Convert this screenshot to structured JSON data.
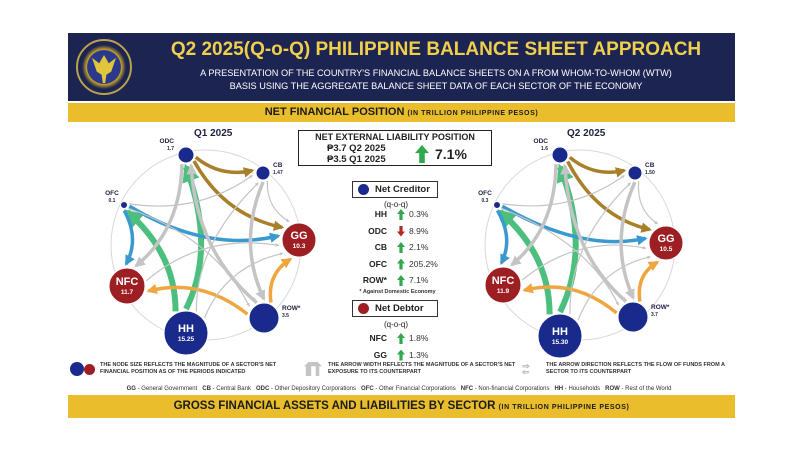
{
  "header": {
    "title": "Q2 2025(Q-o-Q) PHILIPPINE BALANCE SHEET APPROACH",
    "subtitle_line1": "A PRESENTATION OF THE COUNTRY'S FINANCIAL BALANCE SHEETS ON A FROM WHOM-TO-WHOM (WTW)",
    "subtitle_line2": "BASIS USING THE AGGREGATE BALANCE SHEET DATA OF EACH SECTOR OF THE ECONOMY"
  },
  "section1": {
    "title": "NET FINANCIAL POSITION",
    "unit": "(IN TRILLION PHILIPPINE PESOS)"
  },
  "section2": {
    "title": "GROSS FINANCIAL ASSETS AND LIABILITIES BY SECTOR",
    "unit": "(IN TRILLION PHILIPPINE PESOS)"
  },
  "colors": {
    "navy": "#1c2452",
    "gold": "#e9bd2c",
    "creditor": "#1a2a8c",
    "debtor": "#9e1f23",
    "green_flow": "#4cbf7f",
    "blue_flow": "#3a9ad0",
    "orange_flow": "#f0a640",
    "brown_flow": "#a8802a",
    "grey_flow": "#c4c4c4"
  },
  "q1": {
    "label": "Q1 2025",
    "nodes": {
      "ODC": "1.7",
      "CB": "1.47",
      "OFC": "0.1",
      "GG": "10.3",
      "NFC": "11.7",
      "ROW": "3.5",
      "HH": "15.25"
    }
  },
  "q2": {
    "label": "Q2 2025",
    "nodes": {
      "ODC": "1.6",
      "CB": "1.50",
      "OFC": "0.3",
      "GG": "10.5",
      "NFC": "11.9",
      "ROW": "3.7",
      "HH": "15.30"
    }
  },
  "node_names": {
    "ODC": "ODC",
    "CB": "CB",
    "OFC": "OFC",
    "GG": "GG",
    "NFC": "NFC",
    "ROW": "ROW*",
    "HH": "HH"
  },
  "flows": [
    {
      "from": "HH",
      "to": "ODC",
      "color": "green_flow",
      "weight": "heavy"
    },
    {
      "from": "HH",
      "to": "OFC",
      "color": "green_flow",
      "weight": "heavy"
    },
    {
      "from": "OFC",
      "to": "GG",
      "color": "blue_flow",
      "weight": "medium"
    },
    {
      "from": "OFC",
      "to": "NFC",
      "color": "blue_flow",
      "weight": "medium"
    },
    {
      "from": "ROW",
      "to": "NFC",
      "color": "orange_flow",
      "weight": "medium"
    },
    {
      "from": "ROW",
      "to": "GG",
      "color": "orange_flow",
      "weight": "medium"
    },
    {
      "from": "ODC",
      "to": "CB",
      "color": "brown_flow",
      "weight": "medium"
    },
    {
      "from": "ODC",
      "to": "GG",
      "color": "brown_flow",
      "weight": "medium"
    },
    {
      "from": "CB",
      "to": "ROW",
      "color": "grey_flow",
      "weight": "medium"
    },
    {
      "from": "ODC",
      "to": "NFC",
      "color": "grey_flow",
      "weight": "medium"
    },
    {
      "from": "HH",
      "to": "CB",
      "color": "grey_flow",
      "weight": "thin"
    },
    {
      "from": "ROW",
      "to": "ODC",
      "color": "grey_flow",
      "weight": "medium"
    },
    {
      "from": "CB",
      "to": "GG",
      "color": "grey_flow",
      "weight": "thin"
    },
    {
      "from": "OFC",
      "to": "CB",
      "color": "grey_flow",
      "weight": "thin"
    },
    {
      "from": "NFC",
      "to": "GG",
      "color": "grey_flow",
      "weight": "thin"
    },
    {
      "from": "HH",
      "to": "GG",
      "color": "grey_flow",
      "weight": "thin"
    },
    {
      "from": "OFC",
      "to": "ROW",
      "color": "grey_flow",
      "weight": "thin"
    },
    {
      "from": "ODC",
      "to": "ROW",
      "color": "grey_flow",
      "weight": "thin"
    }
  ],
  "nelp": {
    "title": "NET EXTERNAL LIABILITY POSITION",
    "q2": "₱3.7 Q2 2025",
    "q1": "₱3.5 Q1 2025",
    "change": "7.1%",
    "direction": "up"
  },
  "net_creditor": {
    "label": "Net Creditor",
    "qoq": "(q-o-q)",
    "rows": [
      {
        "sector": "HH",
        "change": "0.3%",
        "direction": "up"
      },
      {
        "sector": "ODC",
        "change": "8.9%",
        "direction": "down"
      },
      {
        "sector": "CB",
        "change": "2.1%",
        "direction": "up"
      },
      {
        "sector": "OFC",
        "change": "205.2%",
        "direction": "up"
      },
      {
        "sector": "ROW*",
        "change": "7.1%",
        "direction": "up"
      }
    ],
    "note": "* Against Domestic Economy"
  },
  "net_debtor": {
    "label": "Net Debtor",
    "qoq": "(q-o-q)",
    "rows": [
      {
        "sector": "NFC",
        "change": "1.8%",
        "direction": "up"
      },
      {
        "sector": "GG",
        "change": "1.3%",
        "direction": "up"
      }
    ]
  },
  "legend": {
    "node_size": "THE NODE SIZE REFLECTS THE MAGNITUDE OF A SECTOR'S NET FINANCIAL POSITION AS OF THE PERIODS INDICATED",
    "arrow_width": "THE ARROW WIDTH REFLECTS THE MAGNITUDE OF A SECTOR'S NET EXPOSURE TO ITS COUNTERPART",
    "arrow_direction": "THE ARROW DIRECTION REFLECTS THE FLOW OF FUNDS FROM A SECTOR TO ITS COUNTERPART"
  },
  "abbreviations": [
    {
      "code": "GG",
      "name": " - General Government"
    },
    {
      "code": "CB",
      "name": " - Central Bank"
    },
    {
      "code": "ODC",
      "name": " - Other Depository Corporations"
    },
    {
      "code": "OFC",
      "name": " - Other Financial Corporations"
    },
    {
      "code": "NFC",
      "name": " - Non-financial Corporations"
    },
    {
      "code": "HH",
      "name": " - Households"
    },
    {
      "code": "ROW",
      "name": " - Rest of the World"
    }
  ]
}
